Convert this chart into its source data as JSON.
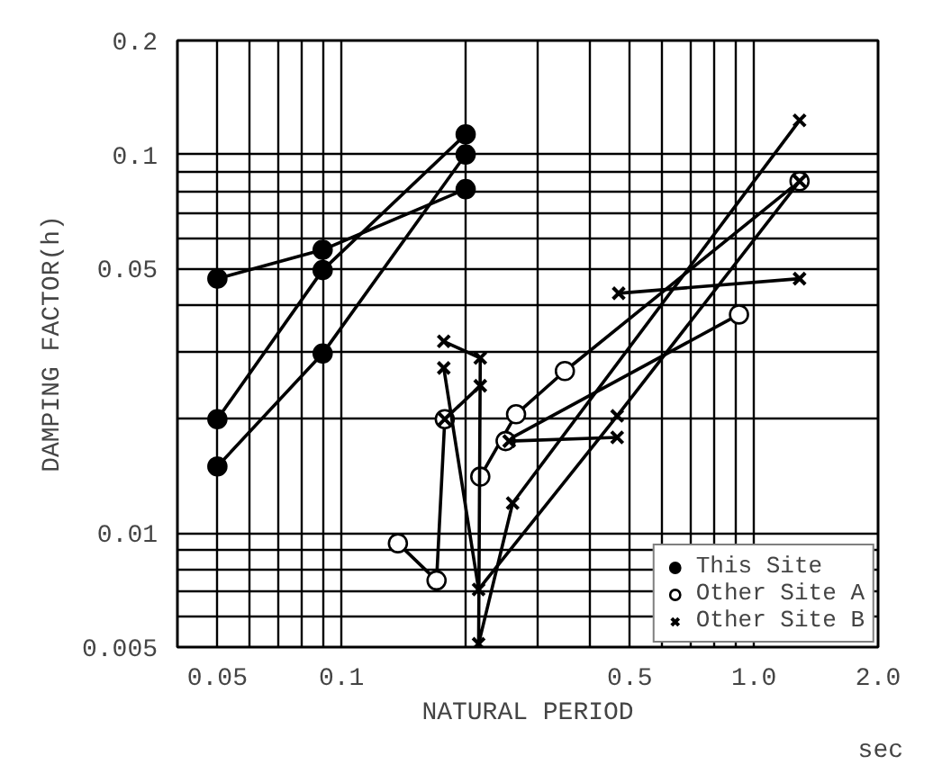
{
  "chart_data": {
    "type": "line",
    "xlabel": "NATURAL PERIOD",
    "ylabel": "DAMPING FACTOR(h)",
    "annotations": [
      "sec"
    ],
    "log": "xy",
    "grid": true,
    "legend": "bottom right",
    "line_style": "solid",
    "xlim": [
      0.04,
      2.0
    ],
    "ylim": [
      0.005,
      0.2
    ],
    "xticks": [
      0.05,
      {
        "value": 0.06,
        "label": null
      },
      {
        "value": 0.07,
        "label": null
      },
      {
        "value": 0.08,
        "label": null
      },
      {
        "value": 0.09,
        "label": null
      },
      0.1,
      {
        "value": 0.2,
        "label": null
      },
      {
        "value": 0.3,
        "label": null
      },
      {
        "value": 0.4,
        "label": null
      },
      0.5,
      {
        "value": 0.6,
        "label": null
      },
      {
        "value": 0.7,
        "label": null
      },
      {
        "value": 0.8,
        "label": null
      },
      {
        "value": 0.9,
        "label": null
      },
      {
        "value": 1.0,
        "label": "1.0"
      },
      {
        "value": 2.0,
        "label": "2.0"
      }
    ],
    "yticks": [
      0.005,
      {
        "value": 0.006,
        "label": null
      },
      {
        "value": 0.007,
        "label": null
      },
      {
        "value": 0.008,
        "label": null
      },
      {
        "value": 0.009,
        "label": null
      },
      0.01,
      {
        "value": 0.02,
        "label": null
      },
      {
        "value": 0.03,
        "label": null
      },
      {
        "value": 0.04,
        "label": null
      },
      0.05,
      {
        "value": 0.06,
        "label": null
      },
      {
        "value": 0.07,
        "label": null
      },
      {
        "value": 0.08,
        "label": null
      },
      {
        "value": 0.09,
        "label": null
      },
      0.1,
      0.2
    ],
    "series": [
      {
        "name": "This Site",
        "color": "#000000",
        "marker": "circle",
        "x": [
          0.05,
          0.09,
          0.2
        ],
        "values": [
          0.047,
          0.056,
          0.081
        ]
      },
      {
        "color": "#000000",
        "marker": "circle",
        "x": [
          0.05,
          0.09,
          0.2
        ],
        "values": [
          0.02,
          0.0495,
          0.113
        ]
      },
      {
        "color": "#000000",
        "marker": "circle",
        "x": [
          0.05,
          0.09,
          0.2
        ],
        "values": [
          0.015,
          0.0298,
          0.1
        ]
      },
      {
        "name": "Other Site A",
        "color": "#000000",
        "colors": [
          "#ffffff",
          "#ffffff",
          "#ffffff"
        ],
        "marker": "circle",
        "x": [
          0.137,
          0.17,
          0.178
        ],
        "values": [
          0.0094,
          0.0075,
          0.02
        ]
      },
      {
        "color": "#000000",
        "colors": [
          "#ffffff",
          "#ffffff",
          "#ffffff",
          "#ffffff"
        ],
        "marker": "circle",
        "x": [
          0.217,
          0.265,
          0.348,
          1.29
        ],
        "values": [
          0.0141,
          0.0206,
          0.0268,
          0.085
        ]
      },
      {
        "color": "#000000",
        "colors": [
          "#ffffff",
          "#ffffff"
        ],
        "marker": "circle",
        "x": [
          0.25,
          0.92
        ],
        "values": [
          0.0175,
          0.0378
        ]
      },
      {
        "name": "Other Site B",
        "color": "#000000",
        "marker": "cross",
        "x": [
          0.177,
          0.217,
          0.215,
          0.26,
          1.29
        ],
        "values": [
          0.0321,
          0.029,
          0.0051,
          0.012,
          0.123
        ]
      },
      {
        "color": "#000000",
        "marker": "cross",
        "x": [
          0.177,
          0.215,
          0.466,
          1.29
        ],
        "values": [
          0.0273,
          0.0071,
          0.0204,
          0.085
        ]
      },
      {
        "color": "#000000",
        "marker": "cross",
        "x": [
          0.178,
          0.217
        ],
        "values": [
          0.02,
          0.0245
        ]
      },
      {
        "color": "#000000",
        "marker": "cross",
        "x": [
          0.255,
          0.466
        ],
        "values": [
          0.0175,
          0.0179
        ]
      },
      {
        "color": "#000000",
        "marker": "cross",
        "x": [
          0.47,
          1.29
        ],
        "values": [
          0.043,
          0.047
        ]
      }
    ]
  }
}
